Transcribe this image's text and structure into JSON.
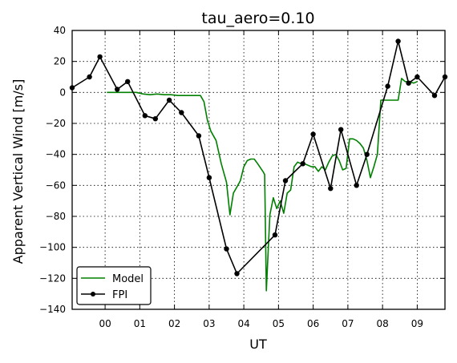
{
  "chart_data": {
    "type": "line",
    "title": "tau_aero=0.10",
    "xlabel": "UT",
    "ylabel": "Apparent Vertical Wind [m/s]",
    "xlim": [
      -0.95,
      9.8
    ],
    "ylim": [
      -140,
      40
    ],
    "x_ticks": [
      0,
      1,
      2,
      3,
      4,
      5,
      6,
      7,
      8,
      9
    ],
    "x_tick_labels": [
      "00",
      "01",
      "02",
      "03",
      "04",
      "05",
      "06",
      "07",
      "08",
      "09"
    ],
    "y_ticks": [
      40,
      20,
      0,
      -20,
      -40,
      -60,
      -80,
      -100,
      -120,
      -140
    ],
    "y_tick_labels": [
      "40",
      "20",
      "0",
      "−20",
      "−40",
      "−60",
      "−80",
      "−100",
      "−120",
      "−140"
    ],
    "grid": true,
    "legend_position": "lower-left",
    "series": [
      {
        "name": "Model",
        "color": "#008000",
        "marker": false,
        "x": [
          0.05,
          0.3,
          0.6,
          0.9,
          1.1,
          1.3,
          1.5,
          1.7,
          1.9,
          2.1,
          2.3,
          2.5,
          2.65,
          2.75,
          2.85,
          2.95,
          3.05,
          3.2,
          3.35,
          3.5,
          3.6,
          3.7,
          3.8,
          3.9,
          4.0,
          4.1,
          4.2,
          4.3,
          4.4,
          4.55,
          4.6,
          4.65,
          4.75,
          4.85,
          4.95,
          5.05,
          5.15,
          5.25,
          5.35,
          5.45,
          5.55,
          5.65,
          5.75,
          5.85,
          5.95,
          6.05,
          6.15,
          6.25,
          6.35,
          6.45,
          6.55,
          6.65,
          6.75,
          6.85,
          6.95,
          7.05,
          7.15,
          7.25,
          7.35,
          7.45,
          7.55,
          7.65,
          7.75,
          7.85,
          7.95,
          8.05,
          8.15,
          8.3,
          8.45,
          8.55,
          8.65,
          8.75,
          8.9,
          9.0
        ],
        "y": [
          0,
          0,
          0,
          0,
          -1,
          -1.5,
          -1,
          -1.5,
          -1.5,
          -2,
          -2,
          -2,
          -2,
          -2,
          -6,
          -18,
          -25,
          -31,
          -46,
          -58,
          -79,
          -65,
          -61,
          -57,
          -48,
          -44,
          -43,
          -43,
          -46,
          -51,
          -53,
          -128,
          -79,
          -68,
          -75,
          -70,
          -78,
          -65,
          -63,
          -48,
          -45,
          -46,
          -46,
          -47,
          -48,
          -48,
          -51,
          -48,
          -50,
          -45,
          -41,
          -40,
          -44,
          -50,
          -49,
          -30,
          -30,
          -31,
          -33,
          -36,
          -44,
          -55,
          -48,
          -40,
          -5,
          -5,
          -5,
          -5,
          -5,
          9,
          7,
          7,
          6,
          7
        ]
      },
      {
        "name": "FPI",
        "color": "#000000",
        "marker": true,
        "x": [
          -0.95,
          -0.45,
          -0.15,
          0.35,
          0.65,
          1.15,
          1.45,
          1.85,
          2.2,
          2.7,
          3.0,
          3.5,
          3.8,
          4.9,
          5.2,
          5.7,
          6.0,
          6.5,
          6.8,
          7.25,
          7.55,
          8.15,
          8.45,
          8.75,
          9.0,
          9.5,
          9.8
        ],
        "y": [
          3,
          10,
          23,
          2,
          7,
          -15,
          -17,
          -5,
          -13,
          -28,
          -55,
          -101,
          -117,
          -92,
          -57,
          -46,
          -27,
          -62,
          -24,
          -60,
          -40,
          4,
          33,
          6,
          10,
          -2,
          10
        ]
      }
    ]
  }
}
